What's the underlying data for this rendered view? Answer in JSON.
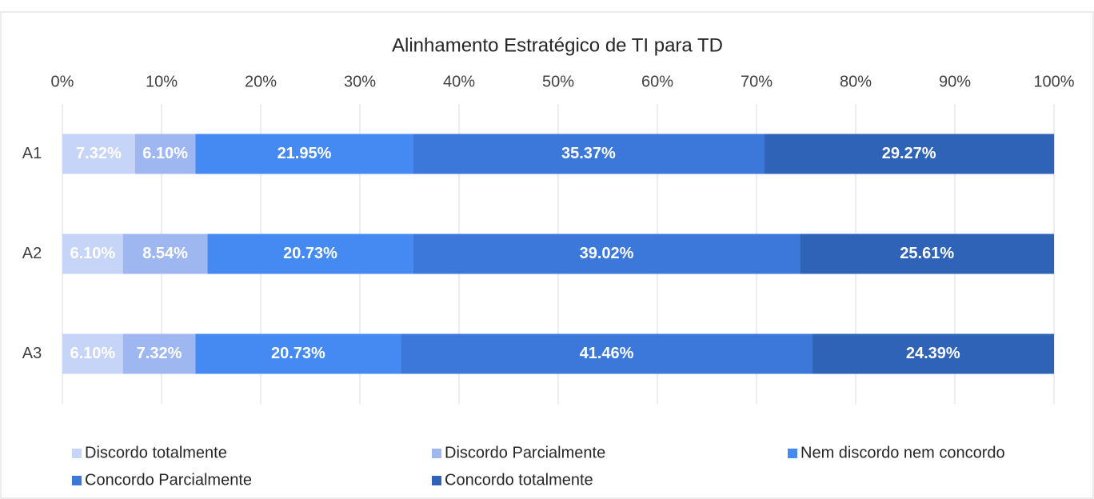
{
  "chart_data": {
    "type": "stacked_barh",
    "title": "Alinhamento Estratégico de TI para TD",
    "categories": [
      "A1",
      "A2",
      "A3"
    ],
    "series": [
      {
        "name": "Discordo totalmente",
        "color": "#c6d4f7",
        "values": [
          7.32,
          6.1,
          6.1
        ],
        "value_labels": [
          "7.32%",
          "6.10%",
          "6.10%"
        ]
      },
      {
        "name": "Discordo Parcialmente",
        "color": "#9fb7f1",
        "values": [
          6.1,
          8.54,
          7.32
        ],
        "value_labels": [
          "6.10%",
          "8.54%",
          "7.32%"
        ]
      },
      {
        "name": "Nem discordo nem concordo",
        "color": "#4589f2",
        "values": [
          21.95,
          20.73,
          20.73
        ],
        "value_labels": [
          "21.95%",
          "20.73%",
          "20.73%"
        ]
      },
      {
        "name": "Concordo Parcialmente",
        "color": "#3b78da",
        "values": [
          35.37,
          39.02,
          41.46
        ],
        "value_labels": [
          "35.37%",
          "39.02%",
          "41.46%"
        ]
      },
      {
        "name": "Concordo totalmente",
        "color": "#2f63b7",
        "values": [
          29.27,
          25.61,
          24.39
        ],
        "value_labels": [
          "29.27%",
          "25.61%",
          "24.39%"
        ]
      }
    ],
    "xlim": [
      0,
      100
    ],
    "xticks": [
      {
        "value": 0,
        "label": "0%"
      },
      {
        "value": 10,
        "label": "10%"
      },
      {
        "value": 20,
        "label": "20%"
      },
      {
        "value": 30,
        "label": "30%"
      },
      {
        "value": 40,
        "label": "40%"
      },
      {
        "value": 50,
        "label": "50%"
      },
      {
        "value": 60,
        "label": "60%"
      },
      {
        "value": 70,
        "label": "70%"
      },
      {
        "value": 80,
        "label": "80%"
      },
      {
        "value": 90,
        "label": "90%"
      },
      {
        "value": 100,
        "label": "100%"
      }
    ],
    "grid": true,
    "legend": "bottom"
  }
}
